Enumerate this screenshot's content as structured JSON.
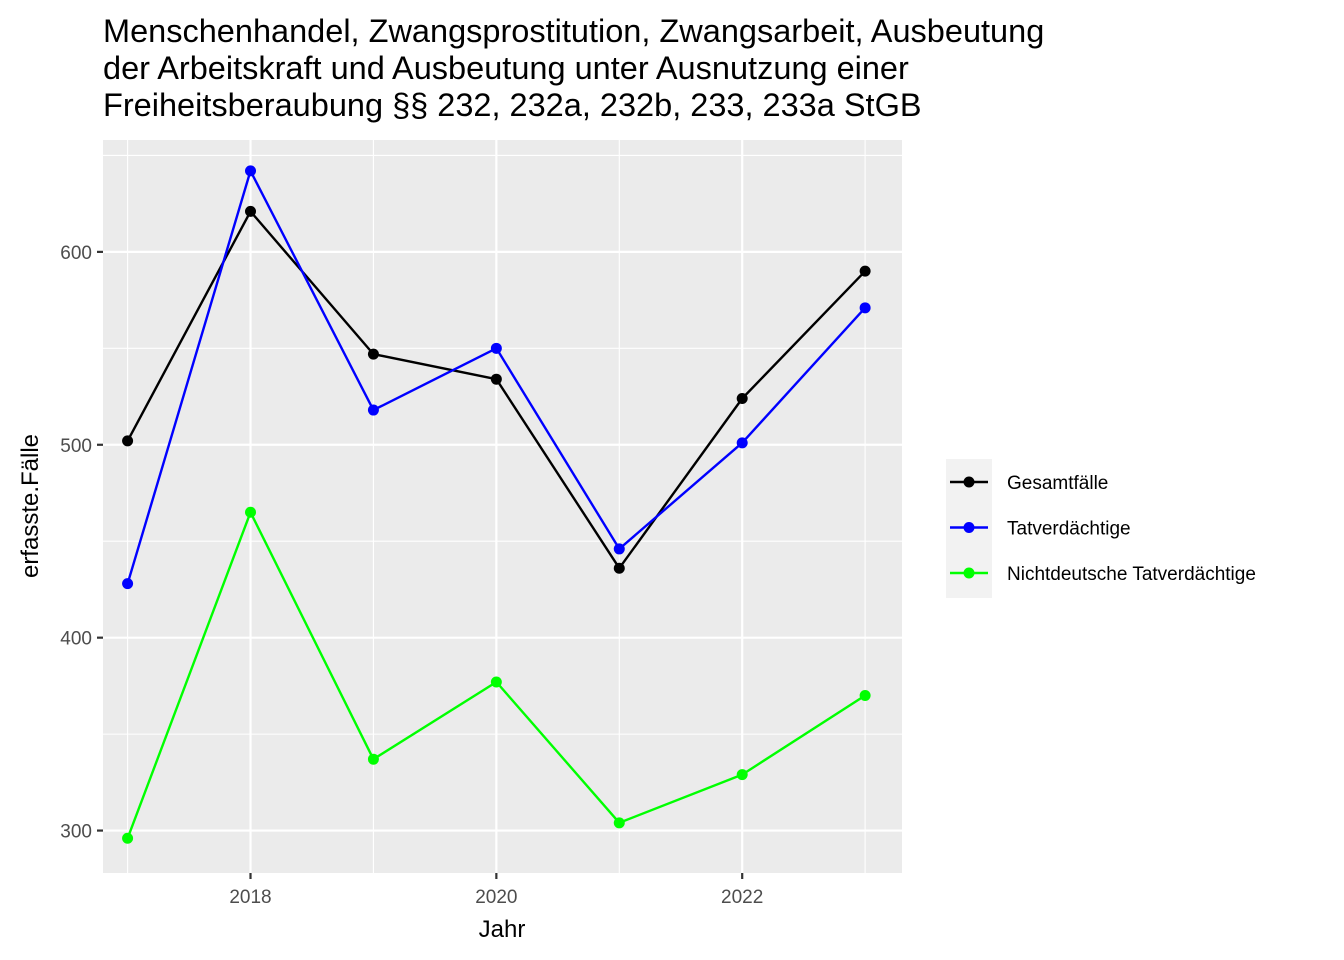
{
  "chart_data": {
    "type": "line",
    "title_lines": [
      "Menschenhandel, Zwangsprostitution, Zwangsarbeit, Ausbeutung",
      "der Arbeitskraft und Ausbeutung unter Ausnutzung einer",
      "Freiheitsberaubung §§ 232, 232a, 232b, 233, 233a StGB"
    ],
    "xlabel": "Jahr",
    "ylabel": "erfasste.Fälle",
    "x": [
      2017,
      2018,
      2019,
      2020,
      2021,
      2022,
      2023
    ],
    "xlim": [
      2016.8,
      2023.3
    ],
    "ylim": [
      278,
      658
    ],
    "x_ticks": [
      2018,
      2020,
      2022
    ],
    "x_tick_labels": [
      "2018",
      "2020",
      "2022"
    ],
    "y_ticks": [
      300,
      400,
      500,
      600
    ],
    "y_tick_labels": [
      "300",
      "400",
      "500",
      "600"
    ],
    "grid": true,
    "legend_position": "right",
    "series": [
      {
        "name": "Gesamtfälle",
        "color": "#000000",
        "values": [
          502,
          621,
          547,
          534,
          436,
          524,
          590
        ]
      },
      {
        "name": "Tatverdächtige",
        "color": "#0000ff",
        "values": [
          428,
          642,
          518,
          550,
          446,
          501,
          571
        ]
      },
      {
        "name": "Nichtdeutsche Tatverdächtige",
        "color": "#00ff00",
        "values": [
          296,
          465,
          337,
          377,
          304,
          329,
          370
        ]
      }
    ]
  }
}
